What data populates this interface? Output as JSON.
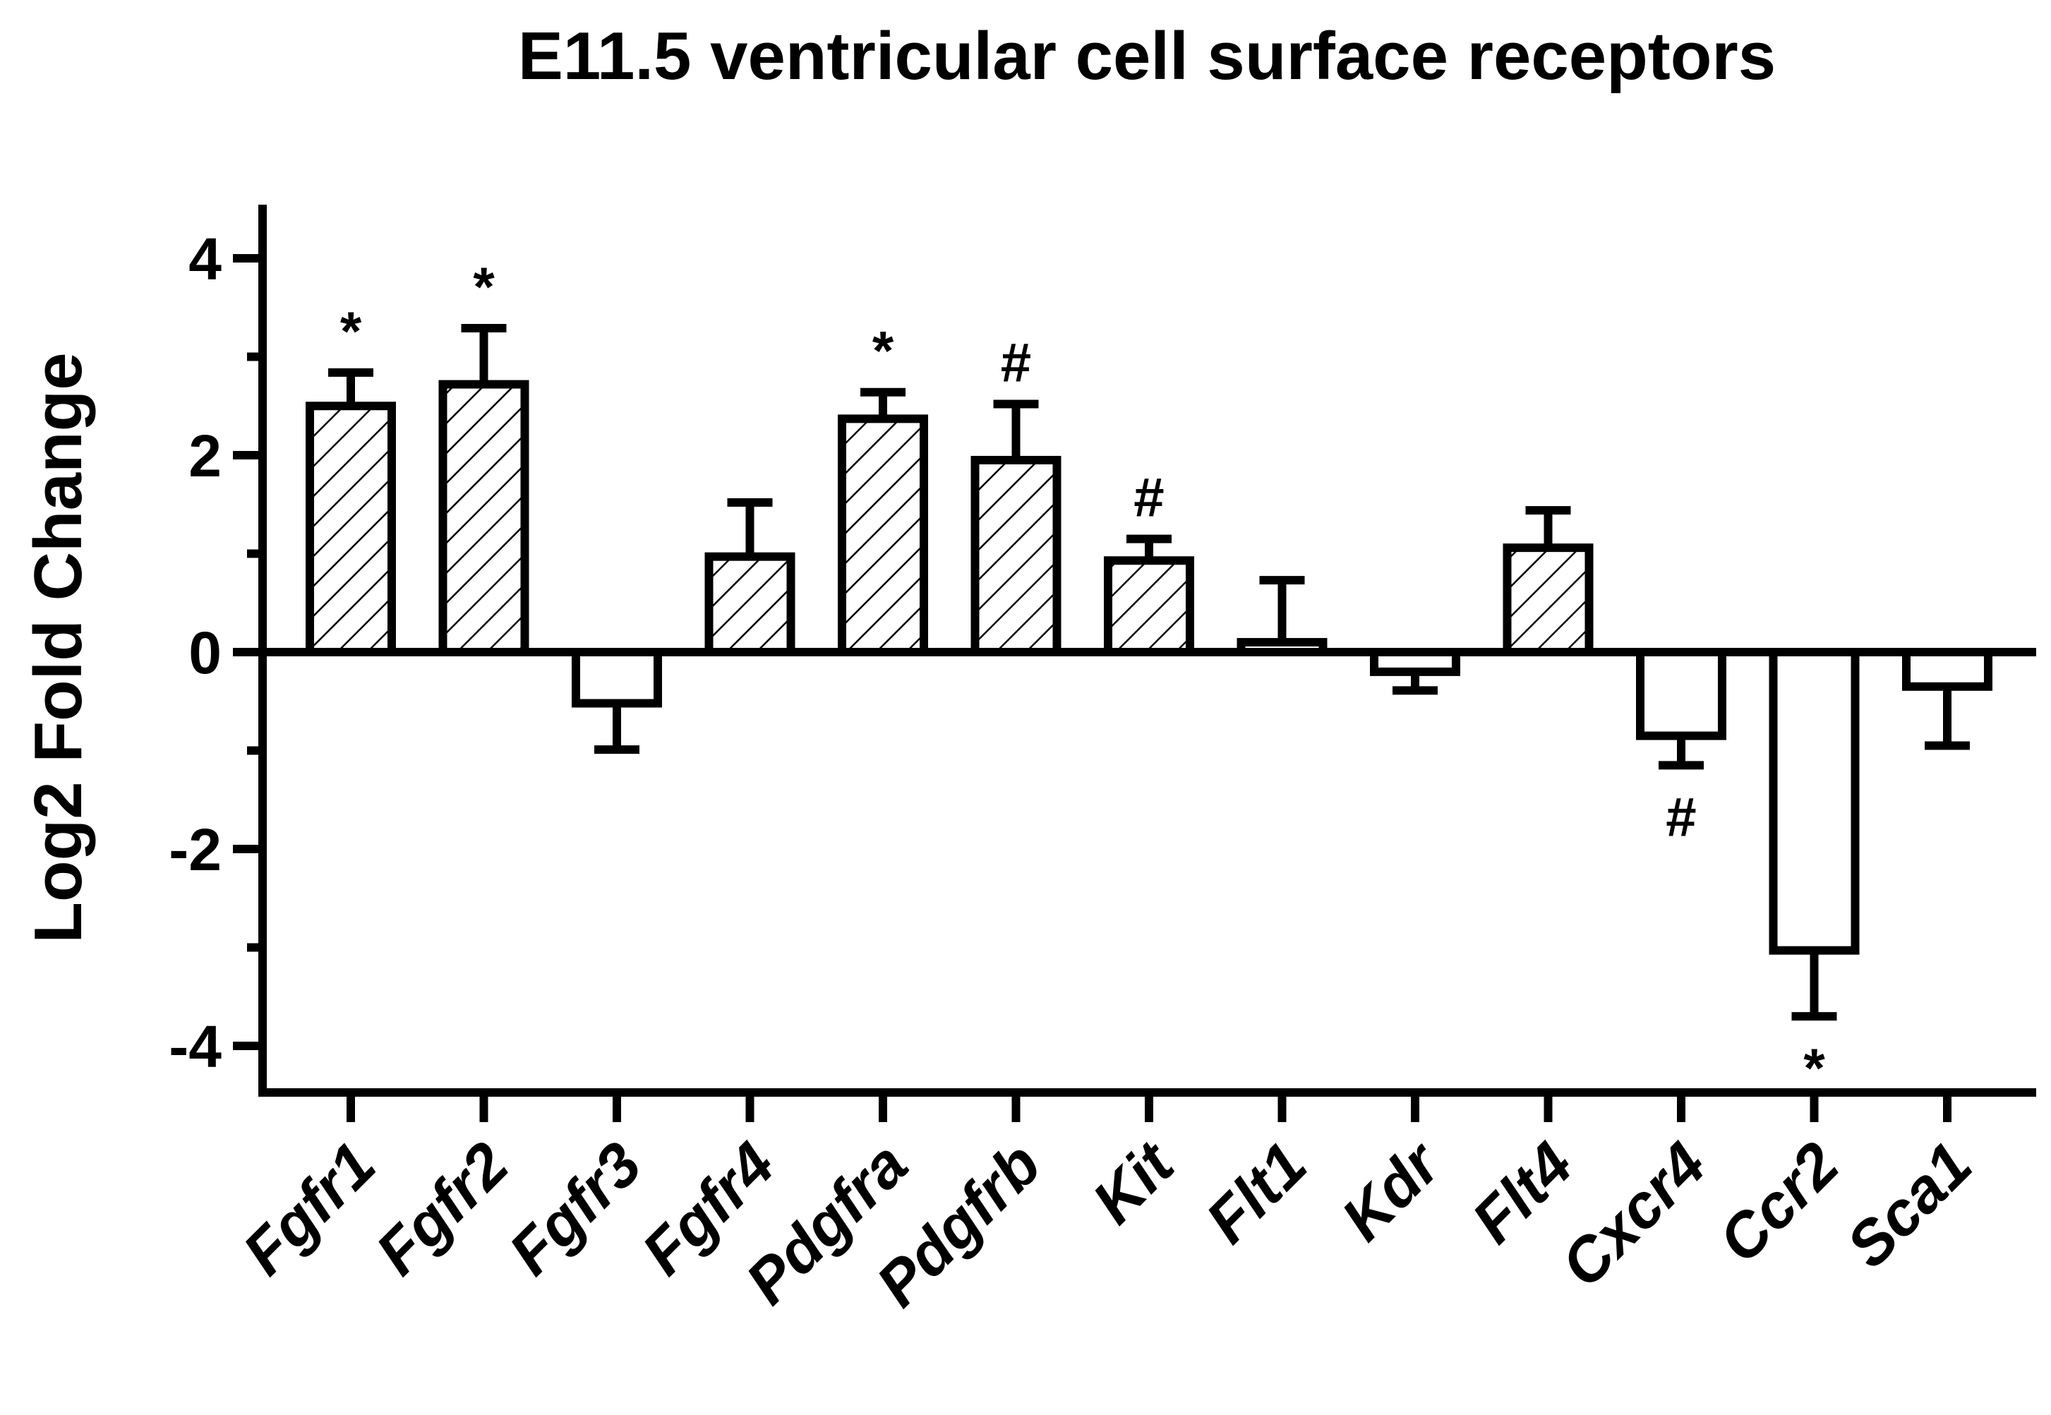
{
  "chart_data": {
    "type": "bar",
    "title": "E11.5 ventricular cell surface receptors",
    "xlabel": "",
    "ylabel": "Log2 Fold Change",
    "ylim": [
      -4.4,
      4.4
    ],
    "yticks": [
      4,
      2,
      0,
      -2,
      -4
    ],
    "ytick_labels": [
      "4",
      "2",
      "0",
      "-2",
      "-4"
    ],
    "categories": [
      "Fgfr1",
      "Fgfr2",
      "Fgfr3",
      "Fgfr4",
      "Pdgfra",
      "Pdgfrb",
      "Kit",
      "Flt1",
      "Kdr",
      "Flt4",
      "Cxcr4",
      "Ccr2",
      "Sca1"
    ],
    "values": [
      2.5,
      2.72,
      -0.52,
      0.97,
      2.37,
      1.95,
      0.93,
      0.1,
      -0.2,
      1.06,
      -0.85,
      -3.03,
      -0.35
    ],
    "errors": [
      0.34,
      0.57,
      0.47,
      0.55,
      0.27,
      0.57,
      0.22,
      0.63,
      0.19,
      0.38,
      0.3,
      0.67,
      0.6
    ],
    "hatched": [
      true,
      true,
      false,
      true,
      true,
      true,
      true,
      false,
      false,
      true,
      false,
      false,
      false
    ],
    "significance": [
      "*",
      "*",
      "",
      "",
      "*",
      "#",
      "#",
      "",
      "",
      "",
      "#",
      "*",
      ""
    ],
    "colors": {
      "stroke": "#000000",
      "fill": "#ffffff"
    }
  }
}
